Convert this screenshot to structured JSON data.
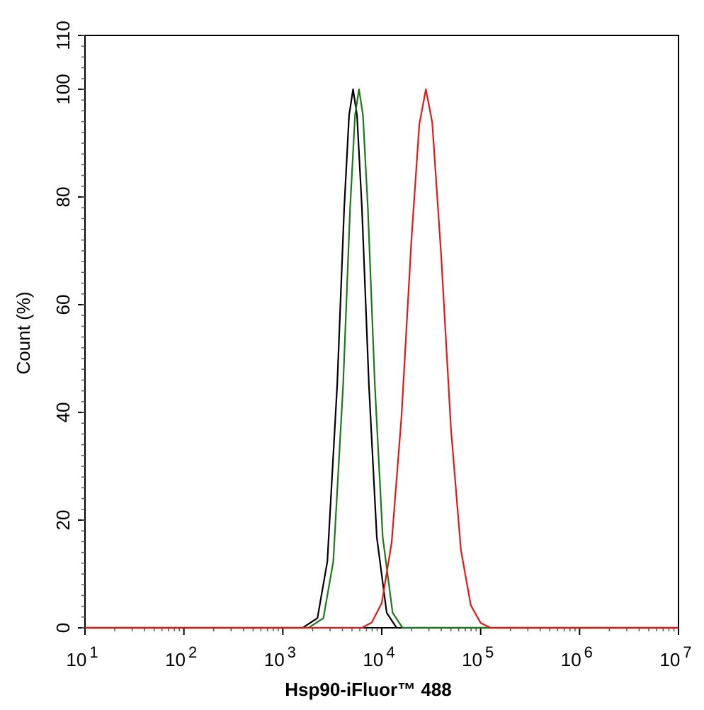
{
  "chart_data": {
    "type": "line",
    "xlabel": "Hsp90-iFluor™ 488",
    "ylabel": "Count  (%)",
    "xscale": "log",
    "xlim": [
      10,
      10000000
    ],
    "xticks": [
      {
        "value": 10,
        "label": "10",
        "exponent": "1"
      },
      {
        "value": 100,
        "label": "10",
        "exponent": "2"
      },
      {
        "value": 1000,
        "label": "10",
        "exponent": "3"
      },
      {
        "value": 10000,
        "label": "10",
        "exponent": "4"
      },
      {
        "value": 100000,
        "label": "10",
        "exponent": "5"
      },
      {
        "value": 1000000,
        "label": "10",
        "exponent": "6"
      },
      {
        "value": 10000000,
        "label": "10",
        "exponent": "7"
      }
    ],
    "ylim": [
      0,
      110
    ],
    "yticks": [
      0,
      20,
      40,
      60,
      80,
      100,
      110
    ],
    "series": [
      {
        "color": "#000000",
        "x": [
          10,
          1585,
          2239,
          2818,
          3548,
          4169,
          4677,
          5129,
          5623,
          6310,
          7413,
          8913,
          11220,
          14125,
          10000000
        ],
        "values": [
          0,
          0,
          1.8,
          12.3,
          45.2,
          77.8,
          95.2,
          100,
          95.2,
          77.8,
          45.2,
          16.8,
          2.8,
          0,
          0
        ]
      },
      {
        "color": "#1a7a1a",
        "x": [
          10,
          1820,
          2570,
          3236,
          4074,
          4786,
          5370,
          5888,
          6457,
          7244,
          8511,
          10233,
          12882,
          16218,
          10000000
        ],
        "values": [
          0,
          0,
          1.8,
          12.3,
          45.2,
          77.8,
          95.2,
          100,
          95.2,
          77.8,
          45.2,
          16.8,
          2.8,
          0,
          0
        ]
      },
      {
        "color": "#e01818",
        "x": [
          10,
          6310,
          7943,
          10000,
          12589,
          15849,
          19953,
          23988,
          27925,
          32359,
          39811,
          50119,
          63096,
          79433,
          100000,
          125893,
          10000000
        ],
        "values": [
          0,
          0,
          1.0,
          4.6,
          15.8,
          39.3,
          72.0,
          93.5,
          100,
          93.9,
          69.4,
          36.9,
          14.5,
          4.2,
          0.9,
          0,
          0
        ]
      }
    ]
  }
}
